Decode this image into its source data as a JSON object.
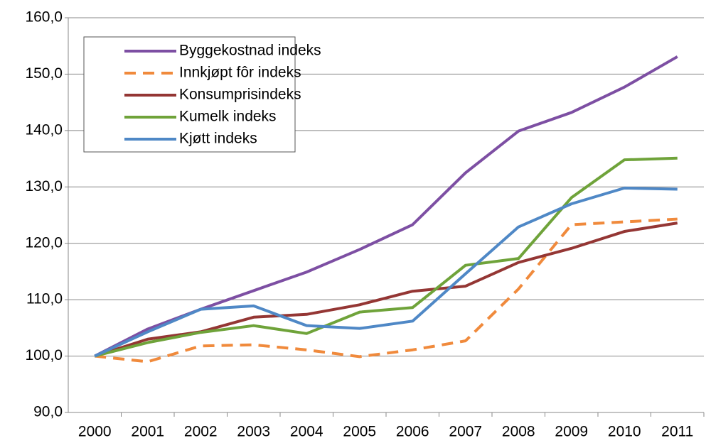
{
  "chart_data": {
    "type": "line",
    "categories": [
      "2000",
      "2001",
      "2002",
      "2003",
      "2004",
      "2005",
      "2006",
      "2007",
      "2008",
      "2009",
      "2010",
      "2011"
    ],
    "series": [
      {
        "name": "Byggekostnad indeks",
        "color": "#7d4fa3",
        "dash": false,
        "values": [
          100,
          104.8,
          108.3,
          111.6,
          114.9,
          118.9,
          123.3,
          132.5,
          139.9,
          143.2,
          147.7,
          153.1
        ]
      },
      {
        "name": "Innkjøpt fôr indeks",
        "color": "#f08a3c",
        "dash": true,
        "values": [
          100,
          99.0,
          101.8,
          102.0,
          101.1,
          99.9,
          101.1,
          102.7,
          111.9,
          123.3,
          123.8,
          124.3
        ]
      },
      {
        "name": "Konsumprisindeks",
        "color": "#943634",
        "dash": false,
        "values": [
          100,
          103.0,
          104.3,
          106.9,
          107.4,
          109.1,
          111.5,
          112.4,
          116.6,
          119.1,
          122.1,
          123.6
        ]
      },
      {
        "name": "Kumelk indeks",
        "color": "#6fa33a",
        "dash": false,
        "values": [
          100,
          102.4,
          104.2,
          105.4,
          104.0,
          107.8,
          108.6,
          116.1,
          117.3,
          128.1,
          134.8,
          135.1
        ]
      },
      {
        "name": "Kjøtt indeks",
        "color": "#4f88c6",
        "dash": false,
        "values": [
          100,
          104.3,
          108.3,
          108.9,
          105.4,
          104.9,
          106.2,
          114.6,
          122.9,
          127.0,
          129.8,
          129.6
        ]
      }
    ],
    "ylim": [
      90,
      160
    ],
    "yticks": [
      {
        "value": 90,
        "label": "90,0"
      },
      {
        "value": 100,
        "label": "100,0"
      },
      {
        "value": 110,
        "label": "110,0"
      },
      {
        "value": 120,
        "label": "120,0"
      },
      {
        "value": 130,
        "label": "130,0"
      },
      {
        "value": 140,
        "label": "140,0"
      },
      {
        "value": 150,
        "label": "150,0"
      },
      {
        "value": 160,
        "label": "160,0"
      }
    ],
    "grid": true,
    "legend": "upper left"
  }
}
